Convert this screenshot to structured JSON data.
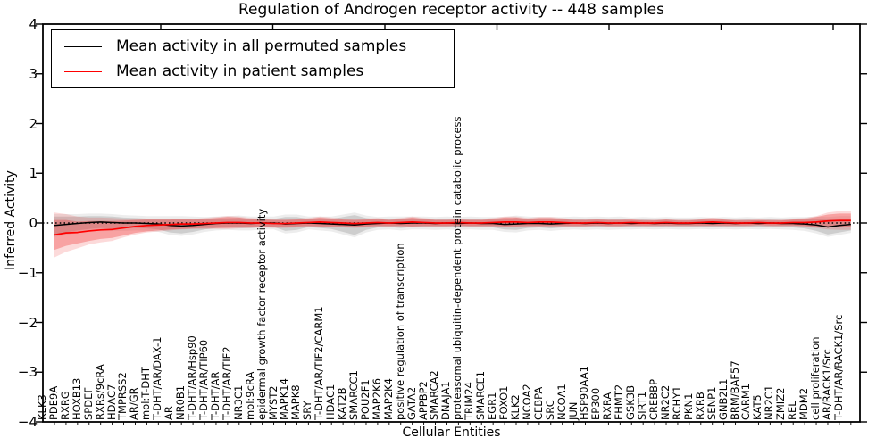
{
  "chart_data": {
    "type": "line",
    "title": "Regulation of Androgen receptor activity -- 448 samples",
    "xlabel": "Cellular Entities",
    "ylabel": "Inferred Activity",
    "ylim": [
      -4,
      4
    ],
    "yticks": [
      4,
      3,
      2,
      1,
      0,
      -1,
      -2,
      -3,
      -4
    ],
    "yticklabels": [
      "4",
      "3",
      "2",
      "1",
      "0",
      "−1",
      "−2",
      "−3",
      "−4"
    ],
    "grid": false,
    "legend_position": "upper left",
    "zero_reference_line": 0,
    "categories": [
      "KLK3",
      "PDE9A",
      "RXRG",
      "HOXB13",
      "SPDEF",
      "RXRs/9cRA",
      "HDAC7",
      "TMPRSS2",
      "AR/GR",
      "mol:T-DHT",
      "T-DHT/AR/DAX-1",
      "AR",
      "NR0B1",
      "T-DHT/AR/Hsp90",
      "T-DHT/AR/TIP60",
      "T-DHT/AR",
      "T-DHT/AR/TIF2",
      "NR3C1",
      "mol:9cRA",
      "epidermal growth factor receptor activity",
      "MYST2",
      "MAPK14",
      "MAPK8",
      "SRY",
      "T-DHT/AR/TIF2/CARM1",
      "HDAC1",
      "KAT2B",
      "SMARCC1",
      "POU2F1",
      "MAP2K6",
      "MAP2K4",
      "positive regulation of transcription",
      "GATA2",
      "APPBP2",
      "SMARCA2",
      "DNAJA1",
      "proteasomal ubiquitin-dependent protein catabolic process",
      "TRIM24",
      "SMARCE1",
      "EGR1",
      "FOXO1",
      "KLK2",
      "NCOA2",
      "CEBPA",
      "SRC",
      "NCOA1",
      "JUN",
      "HSP90AA1",
      "EP300",
      "RXRA",
      "EHMT2",
      "GSK3B",
      "SIRT1",
      "CREBBP",
      "NR2C2",
      "RCHY1",
      "PKN1",
      "RXRB",
      "SENP1",
      "GNB2L1",
      "BRM/BAF57",
      "CARM1",
      "KAT5",
      "NR2C1",
      "ZMIZ2",
      "REL",
      "MDM2",
      "cell proliferation",
      "AR/RACK1/Src",
      "T-DHT/AR/RACK1/Src"
    ],
    "series": [
      {
        "name": "Mean activity in all permuted samples",
        "color": "#000000",
        "band_color": "#777777",
        "values": [
          -0.05,
          -0.03,
          -0.01,
          0.01,
          0.02,
          0.01,
          0,
          0,
          -0.01,
          -0.02,
          -0.05,
          -0.06,
          -0.05,
          -0.03,
          -0.01,
          0,
          0,
          -0.01,
          0,
          0,
          -0.02,
          -0.01,
          0,
          -0.01,
          -0.02,
          -0.03,
          -0.04,
          -0.02,
          -0.01,
          0,
          -0.01,
          0,
          0,
          -0.01,
          0,
          -0.01,
          0,
          -0.01,
          -0.01,
          -0.03,
          -0.02,
          -0.01,
          -0.01,
          -0.02,
          -0.01,
          0,
          -0.01,
          0,
          -0.01,
          0,
          -0.01,
          0,
          -0.01,
          0,
          -0.01,
          -0.01,
          0,
          -0.01,
          0,
          -0.01,
          0,
          -0.01,
          0,
          -0.01,
          -0.01,
          -0.02,
          -0.04,
          -0.08,
          -0.05,
          -0.03
        ],
        "band": [
          0.18,
          0.16,
          0.14,
          0.13,
          0.12,
          0.12,
          0.11,
          0.1,
          0.1,
          0.11,
          0.14,
          0.15,
          0.13,
          0.1,
          0.09,
          0.09,
          0.1,
          0.09,
          0.08,
          0.08,
          0.14,
          0.13,
          0.08,
          0.09,
          0.1,
          0.15,
          0.2,
          0.12,
          0.08,
          0.08,
          0.09,
          0.08,
          0.08,
          0.08,
          0.08,
          0.08,
          0.08,
          0.08,
          0.08,
          0.1,
          0.12,
          0.09,
          0.08,
          0.09,
          0.08,
          0.08,
          0.08,
          0.08,
          0.08,
          0.08,
          0.07,
          0.07,
          0.07,
          0.07,
          0.07,
          0.07,
          0.07,
          0.07,
          0.07,
          0.07,
          0.07,
          0.07,
          0.07,
          0.07,
          0.08,
          0.09,
          0.12,
          0.15,
          0.14,
          0.12
        ],
        "band_outer": [
          0.23,
          0.21,
          0.19,
          0.18,
          0.17,
          0.17,
          0.16,
          0.15,
          0.15,
          0.16,
          0.19,
          0.2,
          0.18,
          0.15,
          0.14,
          0.14,
          0.15,
          0.14,
          0.13,
          0.13,
          0.19,
          0.18,
          0.13,
          0.14,
          0.15,
          0.2,
          0.25,
          0.17,
          0.13,
          0.13,
          0.14,
          0.13,
          0.13,
          0.13,
          0.13,
          0.13,
          0.13,
          0.13,
          0.13,
          0.15,
          0.17,
          0.14,
          0.13,
          0.14,
          0.13,
          0.13,
          0.13,
          0.13,
          0.13,
          0.13,
          0.12,
          0.12,
          0.12,
          0.12,
          0.12,
          0.12,
          0.12,
          0.12,
          0.12,
          0.12,
          0.12,
          0.12,
          0.12,
          0.12,
          0.13,
          0.14,
          0.17,
          0.2,
          0.19,
          0.17
        ]
      },
      {
        "name": "Mean activity in patient samples",
        "color": "#ff0000",
        "band_color": "#f03030",
        "values": [
          -0.24,
          -0.2,
          -0.19,
          -0.16,
          -0.14,
          -0.13,
          -0.1,
          -0.07,
          -0.05,
          -0.04,
          -0.03,
          -0.02,
          -0.02,
          -0.01,
          0,
          0.01,
          0.01,
          0,
          0,
          -0.01,
          -0.01,
          0,
          0.01,
          0.02,
          0.01,
          0,
          -0.01,
          0,
          0.01,
          0,
          0.01,
          0.02,
          0.01,
          0,
          0,
          0.01,
          0,
          0,
          0.01,
          0.02,
          0.02,
          0.01,
          0.02,
          0.02,
          0.01,
          0,
          0,
          0.01,
          0,
          0,
          0.01,
          0,
          0,
          0.01,
          0,
          0,
          0.01,
          0.02,
          0.01,
          0,
          0,
          0.01,
          0,
          0,
          0.01,
          0.01,
          0.02,
          0.04,
          0.05,
          0.05
        ],
        "band": [
          0.3,
          0.26,
          0.22,
          0.2,
          0.18,
          0.17,
          0.15,
          0.13,
          0.12,
          0.11,
          0.1,
          0.1,
          0.09,
          0.09,
          0.1,
          0.11,
          0.1,
          0.08,
          0.07,
          0.07,
          0.07,
          0.07,
          0.07,
          0.09,
          0.08,
          0.07,
          0.07,
          0.07,
          0.07,
          0.06,
          0.07,
          0.09,
          0.07,
          0.06,
          0.06,
          0.06,
          0.06,
          0.06,
          0.07,
          0.09,
          0.09,
          0.07,
          0.08,
          0.08,
          0.07,
          0.06,
          0.06,
          0.06,
          0.06,
          0.06,
          0.06,
          0.05,
          0.05,
          0.06,
          0.05,
          0.05,
          0.06,
          0.07,
          0.06,
          0.05,
          0.05,
          0.05,
          0.05,
          0.05,
          0.06,
          0.07,
          0.1,
          0.13,
          0.14,
          0.14
        ],
        "band_outer": [
          0.45,
          0.38,
          0.32,
          0.27,
          0.25,
          0.23,
          0.19,
          0.16,
          0.14,
          0.13,
          0.12,
          0.11,
          0.1,
          0.11,
          0.12,
          0.13,
          0.12,
          0.1,
          0.09,
          0.09,
          0.09,
          0.09,
          0.09,
          0.11,
          0.1,
          0.09,
          0.09,
          0.09,
          0.09,
          0.08,
          0.09,
          0.11,
          0.09,
          0.08,
          0.08,
          0.08,
          0.08,
          0.08,
          0.09,
          0.11,
          0.11,
          0.09,
          0.1,
          0.1,
          0.09,
          0.08,
          0.08,
          0.08,
          0.08,
          0.08,
          0.08,
          0.07,
          0.07,
          0.08,
          0.07,
          0.07,
          0.08,
          0.09,
          0.08,
          0.07,
          0.07,
          0.07,
          0.07,
          0.07,
          0.08,
          0.09,
          0.12,
          0.17,
          0.19,
          0.19
        ]
      }
    ]
  },
  "colors": {
    "background": "#ffffff",
    "spine": "#000000",
    "zero_line": "#000000"
  }
}
